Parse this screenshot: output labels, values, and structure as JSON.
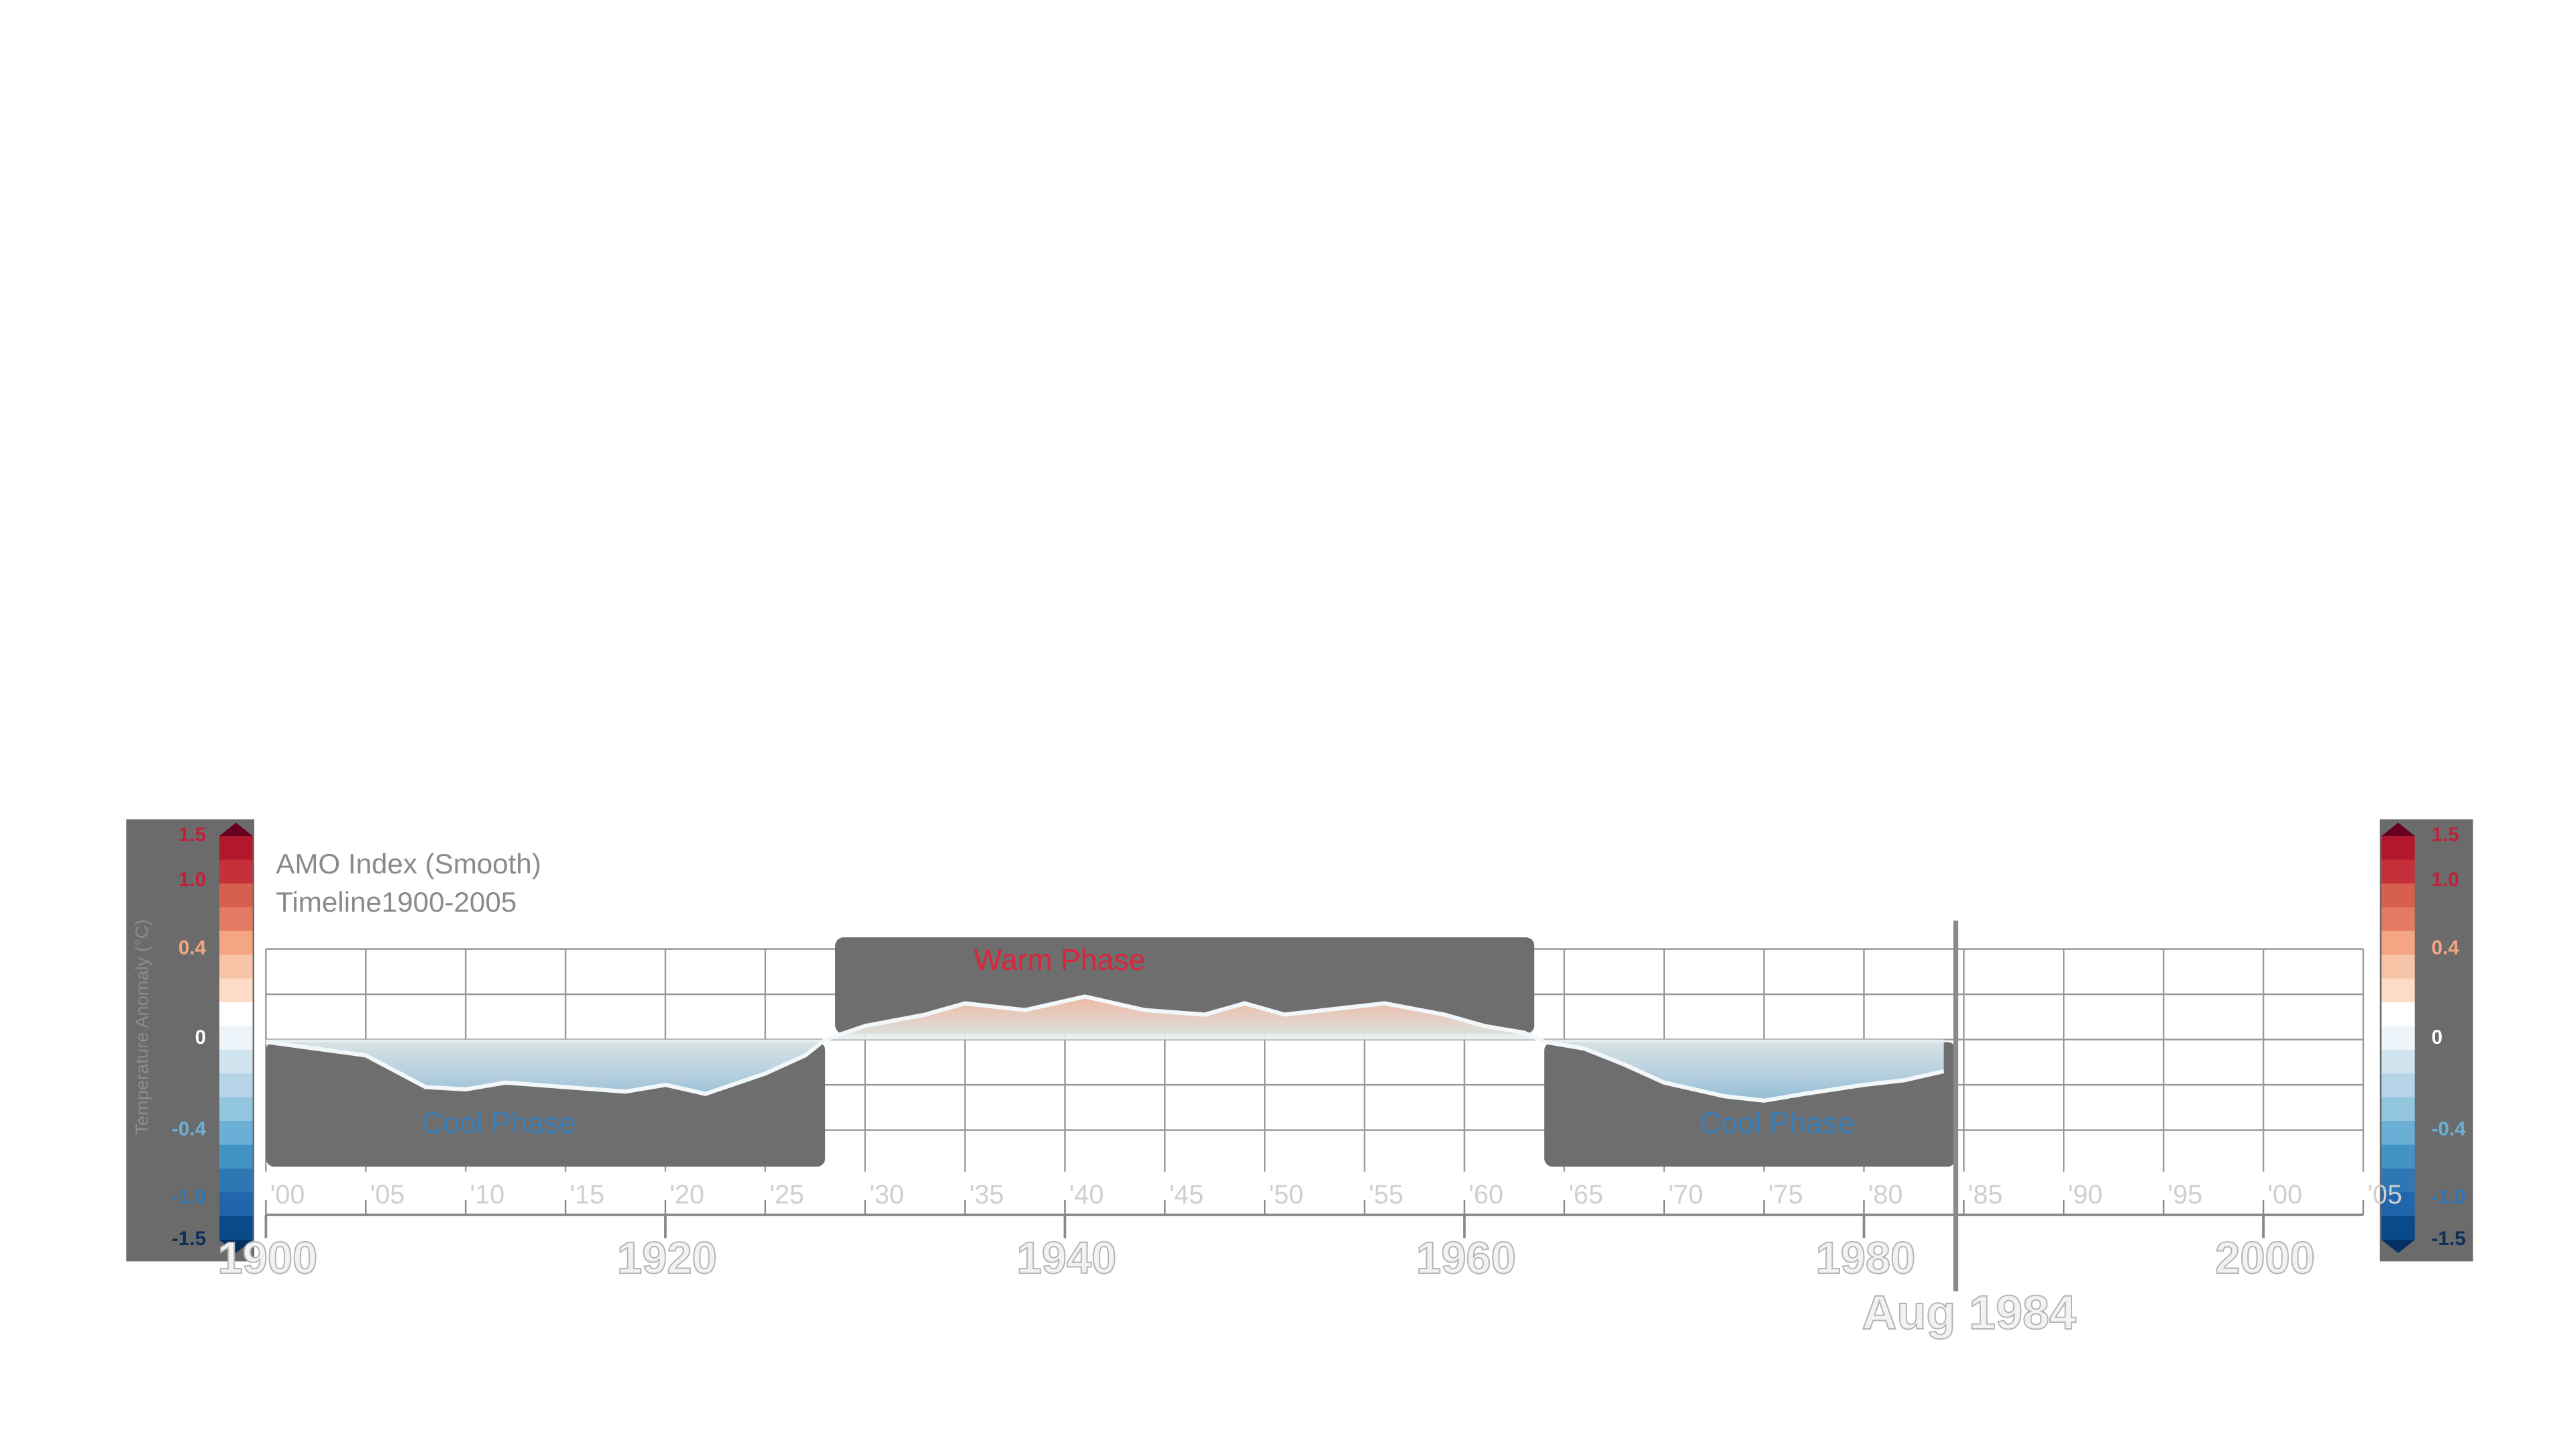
{
  "chart_data": {
    "type": "area",
    "title": "AMO Index (Smooth)",
    "subtitle": "Timeline1900-2005",
    "y_label": "Temperature Anomaly (°C)",
    "x": [
      1900,
      1905,
      1908,
      1910,
      1912,
      1915,
      1918,
      1920,
      1922,
      1925,
      1927,
      1928,
      1930,
      1933,
      1935,
      1938,
      1941,
      1944,
      1947,
      1949,
      1951,
      1954,
      1956,
      1959,
      1961,
      1963,
      1964,
      1966,
      1968,
      1970,
      1973,
      1975,
      1977,
      1980,
      1982,
      1984
    ],
    "values": [
      -0.01,
      -0.07,
      -0.21,
      -0.22,
      -0.19,
      -0.21,
      -0.23,
      -0.2,
      -0.24,
      -0.15,
      -0.07,
      0,
      0.06,
      0.11,
      0.16,
      0.13,
      0.19,
      0.13,
      0.11,
      0.16,
      0.11,
      0.14,
      0.16,
      0.11,
      0.06,
      0.03,
      -0.01,
      -0.04,
      -0.11,
      -0.19,
      -0.25,
      -0.27,
      -0.24,
      -0.2,
      -0.18,
      -0.14
    ],
    "xlim": [
      1900,
      2005
    ],
    "ylim": [
      -0.4,
      0.4
    ],
    "ygrid": [
      -0.4,
      -0.2,
      0,
      0.2,
      0.4
    ],
    "xticks": [
      {
        "value": 1900,
        "label": "'00"
      },
      {
        "value": 1905,
        "label": "'05"
      },
      {
        "value": 1910,
        "label": "'10"
      },
      {
        "value": 1915,
        "label": "'15"
      },
      {
        "value": 1920,
        "label": "'20"
      },
      {
        "value": 1925,
        "label": "'25"
      },
      {
        "value": 1930,
        "label": "'30"
      },
      {
        "value": 1935,
        "label": "'35"
      },
      {
        "value": 1940,
        "label": "'40"
      },
      {
        "value": 1945,
        "label": "'45"
      },
      {
        "value": 1950,
        "label": "'50"
      },
      {
        "value": 1955,
        "label": "'55"
      },
      {
        "value": 1960,
        "label": "'60"
      },
      {
        "value": 1965,
        "label": "'65"
      },
      {
        "value": 1970,
        "label": "'70"
      },
      {
        "value": 1975,
        "label": "'75"
      },
      {
        "value": 1980,
        "label": "'80"
      },
      {
        "value": 1985,
        "label": "'85"
      },
      {
        "value": 1990,
        "label": "'90"
      },
      {
        "value": 1995,
        "label": "'95"
      },
      {
        "value": 2000,
        "label": "'00"
      },
      {
        "value": 2005,
        "label": "'05"
      }
    ],
    "major_xticks": [
      1900,
      1920,
      1940,
      1960,
      1980,
      2000
    ],
    "phases": [
      {
        "label": "Cool Phase",
        "start": 1900,
        "end": 1928,
        "kind": "cool"
      },
      {
        "label": "Warm Phase",
        "start": 1928.5,
        "end": 1963.5,
        "kind": "warm"
      },
      {
        "label": "Cool Phase",
        "start": 1964,
        "end": 1984.6,
        "kind": "cool"
      }
    ],
    "marker": {
      "label": "Aug 1984",
      "x": 1984.6
    },
    "colorbar": {
      "ticks": [
        1.5,
        {
          "value": 1,
          "label": "1.0"
        },
        0.4,
        0,
        -0.4,
        {
          "value": -1,
          "label": "-1.0"
        },
        -1.5
      ],
      "colors": [
        "#b2182b",
        "#c6303b",
        "#d6604d",
        "#e27b62",
        "#f4a582",
        "#f8c4a8",
        "#fddbc7",
        "#ffffff",
        "#eef5fa",
        "#d1e5f0",
        "#b5d4e8",
        "#92c5de",
        "#6baed6",
        "#4393c3",
        "#2f76b5",
        "#2166ac",
        "#0b4a8a"
      ]
    }
  }
}
